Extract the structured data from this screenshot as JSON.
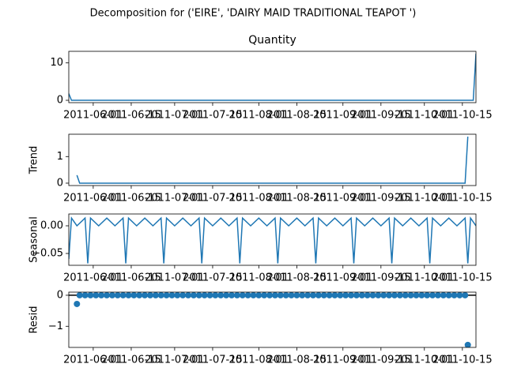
{
  "title": "Decomposition for ('EIRE', 'DAIRY MAID TRADITIONAL TEAPOT ')",
  "chart_data": [
    {
      "type": "line",
      "title": "Quantity",
      "color": "#1f77b4",
      "x": [
        "2011-05-23",
        "2011-05-24",
        "2011-10-19",
        "2011-10-20"
      ],
      "values": [
        1.8,
        0,
        0,
        12.5
      ],
      "xlim": [
        "2011-05-23",
        "2011-10-20"
      ],
      "ylim": [
        -0.63,
        13.1
      ],
      "yticks": [
        0,
        10
      ],
      "xticks": [
        "2011-06-01",
        "2011-06-15",
        "2011-07-01",
        "2011-07-15",
        "2011-08-01",
        "2011-08-15",
        "2011-09-01",
        "2011-09-15",
        "2011-10-01",
        "2011-10-15"
      ]
    },
    {
      "type": "line",
      "y_label": "Trend",
      "color": "#1f77b4",
      "x": [
        "2011-05-26",
        "2011-05-27",
        "2011-10-16",
        "2011-10-17"
      ],
      "values": [
        0.3,
        0,
        0,
        1.75
      ],
      "xlim": [
        "2011-05-23",
        "2011-10-20"
      ],
      "ylim": [
        -0.09,
        1.84
      ],
      "yticks": [
        0,
        1
      ],
      "xticks": [
        "2011-06-01",
        "2011-06-15",
        "2011-07-01",
        "2011-07-15",
        "2011-08-01",
        "2011-08-15",
        "2011-09-01",
        "2011-09-15",
        "2011-10-01",
        "2011-10-15"
      ]
    },
    {
      "type": "line",
      "y_label": "Seasonal",
      "color": "#1f77b4",
      "x": [
        "2011-05-23",
        "2011-05-24",
        "2011-05-26",
        "2011-05-29",
        "2011-05-30",
        "2011-05-31",
        "2011-06-03",
        "2011-06-06",
        "2011-06-09",
        "2011-06-12",
        "2011-06-13",
        "2011-06-14",
        "2011-06-17",
        "2011-06-20",
        "2011-06-23",
        "2011-06-26",
        "2011-06-27",
        "2011-06-28",
        "2011-07-01",
        "2011-07-04",
        "2011-07-07",
        "2011-07-10",
        "2011-07-11",
        "2011-07-12",
        "2011-07-15",
        "2011-07-18",
        "2011-07-21",
        "2011-07-24",
        "2011-07-25",
        "2011-07-26",
        "2011-07-29",
        "2011-08-01",
        "2011-08-04",
        "2011-08-07",
        "2011-08-08",
        "2011-08-09",
        "2011-08-12",
        "2011-08-15",
        "2011-08-18",
        "2011-08-21",
        "2011-08-22",
        "2011-08-23",
        "2011-08-26",
        "2011-08-29",
        "2011-09-01",
        "2011-09-04",
        "2011-09-05",
        "2011-09-06",
        "2011-09-09",
        "2011-09-12",
        "2011-09-15",
        "2011-09-18",
        "2011-09-19",
        "2011-09-20",
        "2011-09-23",
        "2011-09-26",
        "2011-09-29",
        "2011-10-02",
        "2011-10-03",
        "2011-10-04",
        "2011-10-07",
        "2011-10-10",
        "2011-10-13",
        "2011-10-16",
        "2011-10-17",
        "2011-10-18",
        "2011-10-20"
      ],
      "values": [
        -0.06,
        0.014,
        0.0,
        0.014,
        -0.068,
        0.014,
        0.0,
        0.014,
        0.0,
        0.014,
        -0.068,
        0.014,
        0.0,
        0.014,
        0.0,
        0.014,
        -0.068,
        0.014,
        0.0,
        0.014,
        0.0,
        0.014,
        -0.068,
        0.014,
        0.0,
        0.014,
        0.0,
        0.014,
        -0.068,
        0.014,
        0.0,
        0.014,
        0.0,
        0.014,
        -0.068,
        0.014,
        0.0,
        0.014,
        0.0,
        0.014,
        -0.068,
        0.014,
        0.0,
        0.014,
        0.0,
        0.014,
        -0.068,
        0.014,
        0.0,
        0.014,
        0.0,
        0.014,
        -0.068,
        0.014,
        0.0,
        0.014,
        0.0,
        0.014,
        -0.068,
        0.014,
        0.0,
        0.014,
        0.0,
        0.014,
        -0.068,
        0.014,
        0.0
      ],
      "xlim": [
        "2011-05-23",
        "2011-10-20"
      ],
      "ylim": [
        -0.0714,
        0.0214
      ],
      "yticks": [
        {
          "value": -0.05,
          "label": "−0.05"
        },
        {
          "value": 0,
          "label": "0.00"
        }
      ],
      "xticks": [
        "2011-06-01",
        "2011-06-15",
        "2011-07-01",
        "2011-07-15",
        "2011-08-01",
        "2011-08-15",
        "2011-09-01",
        "2011-09-15",
        "2011-10-01",
        "2011-10-15"
      ]
    },
    {
      "type": "scatter",
      "y_label": "Resid",
      "color": "#1f77b4",
      "x": [
        "2011-05-26",
        "2011-05-27",
        "2011-05-29",
        "2011-05-31",
        "2011-06-02",
        "2011-06-04",
        "2011-06-06",
        "2011-06-08",
        "2011-06-10",
        "2011-06-12",
        "2011-06-14",
        "2011-06-16",
        "2011-06-18",
        "2011-06-20",
        "2011-06-22",
        "2011-06-24",
        "2011-06-26",
        "2011-06-28",
        "2011-06-30",
        "2011-07-02",
        "2011-07-04",
        "2011-07-06",
        "2011-07-08",
        "2011-07-10",
        "2011-07-12",
        "2011-07-14",
        "2011-07-16",
        "2011-07-18",
        "2011-07-20",
        "2011-07-22",
        "2011-07-24",
        "2011-07-26",
        "2011-07-28",
        "2011-07-30",
        "2011-08-01",
        "2011-08-03",
        "2011-08-05",
        "2011-08-07",
        "2011-08-09",
        "2011-08-11",
        "2011-08-13",
        "2011-08-15",
        "2011-08-17",
        "2011-08-19",
        "2011-08-21",
        "2011-08-23",
        "2011-08-25",
        "2011-08-27",
        "2011-08-29",
        "2011-08-31",
        "2011-09-02",
        "2011-09-04",
        "2011-09-06",
        "2011-09-08",
        "2011-09-10",
        "2011-09-12",
        "2011-09-14",
        "2011-09-16",
        "2011-09-18",
        "2011-09-20",
        "2011-09-22",
        "2011-09-24",
        "2011-09-26",
        "2011-09-28",
        "2011-09-30",
        "2011-10-02",
        "2011-10-04",
        "2011-10-06",
        "2011-10-08",
        "2011-10-10",
        "2011-10-12",
        "2011-10-14",
        "2011-10-16",
        "2011-10-17"
      ],
      "values": [
        -0.28,
        0,
        0,
        0,
        0,
        0,
        0,
        0,
        0,
        0,
        0,
        0,
        0,
        0,
        0,
        0,
        0,
        0,
        0,
        0,
        0,
        0,
        0,
        0,
        0,
        0,
        0,
        0,
        0,
        0,
        0,
        0,
        0,
        0,
        0,
        0,
        0,
        0,
        0,
        0,
        0,
        0,
        0,
        0,
        0,
        0,
        0,
        0,
        0,
        0,
        0,
        0,
        0,
        0,
        0,
        0,
        0,
        0,
        0,
        0,
        0,
        0,
        0,
        0,
        0,
        0,
        0,
        0,
        0,
        0,
        0,
        0,
        0,
        -1.6
      ],
      "xlim": [
        "2011-05-23",
        "2011-10-20"
      ],
      "ylim": [
        -1.68,
        0.1
      ],
      "yticks": [
        {
          "value": -1,
          "label": "−1"
        },
        0
      ],
      "xticks": [
        "2011-06-01",
        "2011-06-15",
        "2011-07-01",
        "2011-07-15",
        "2011-08-01",
        "2011-08-15",
        "2011-09-01",
        "2011-09-15",
        "2011-10-01",
        "2011-10-15"
      ]
    }
  ]
}
